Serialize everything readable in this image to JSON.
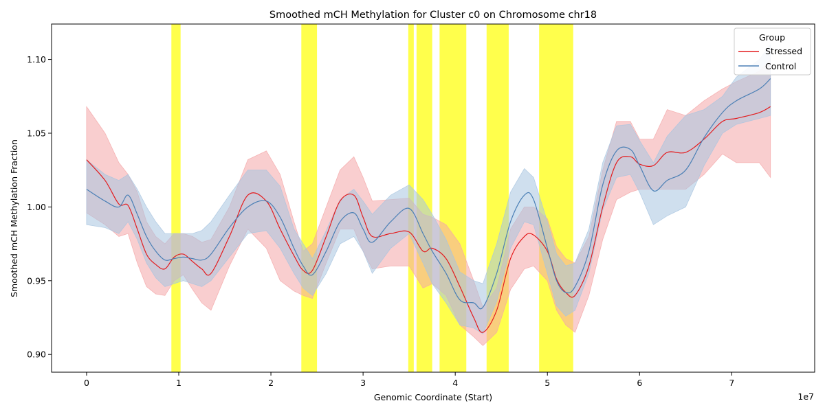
{
  "chart_data": {
    "type": "line",
    "title": "Smoothed mCH Methylation for Cluster c0 on Chromosome chr18",
    "xlabel": "Genomic Coordinate (Start)",
    "ylabel": "Smoothed mCH Methylation Fraction",
    "x_offset_label": "1e7",
    "xlim": [
      -0.38,
      7.9
    ],
    "ylim": [
      0.888,
      1.124
    ],
    "x_ticks": [
      0,
      1,
      2,
      3,
      4,
      5,
      6,
      7
    ],
    "x_tick_labels": [
      "0",
      "1",
      "2",
      "3",
      "4",
      "5",
      "6",
      "7"
    ],
    "y_ticks": [
      0.9,
      0.95,
      1.0,
      1.05,
      1.1
    ],
    "y_tick_labels": [
      "0.90",
      "0.95",
      "1.00",
      "1.05",
      "1.10"
    ],
    "legend": {
      "title": "Group",
      "position": "top-right"
    },
    "highlight_regions": [
      [
        0.92,
        1.02
      ],
      [
        2.33,
        2.5
      ],
      [
        3.49,
        3.55
      ],
      [
        3.58,
        3.75
      ],
      [
        3.83,
        4.12
      ],
      [
        4.34,
        4.58
      ],
      [
        4.91,
        5.28
      ]
    ],
    "highlight_color": "#ffff00",
    "series": [
      {
        "name": "Stressed",
        "color": "#e41a1c",
        "band_color": "#f4a6a7",
        "x": [
          0.0,
          0.2,
          0.35,
          0.45,
          0.55,
          0.65,
          0.75,
          0.85,
          0.95,
          1.05,
          1.15,
          1.25,
          1.35,
          1.55,
          1.75,
          1.95,
          2.1,
          2.25,
          2.35,
          2.45,
          2.6,
          2.75,
          2.9,
          3.0,
          3.1,
          3.3,
          3.5,
          3.65,
          3.75,
          3.9,
          4.05,
          4.2,
          4.3,
          4.45,
          4.6,
          4.75,
          4.85,
          5.0,
          5.1,
          5.2,
          5.3,
          5.45,
          5.6,
          5.75,
          5.9,
          6.0,
          6.15,
          6.3,
          6.5,
          6.7,
          6.9,
          7.05,
          7.3,
          7.42
        ],
        "y": [
          1.032,
          1.018,
          1.002,
          1.001,
          0.985,
          0.968,
          0.961,
          0.958,
          0.966,
          0.968,
          0.963,
          0.958,
          0.955,
          0.98,
          1.008,
          1.004,
          0.985,
          0.967,
          0.957,
          0.957,
          0.98,
          1.004,
          1.008,
          0.993,
          0.98,
          0.982,
          0.983,
          0.97,
          0.972,
          0.965,
          0.946,
          0.925,
          0.915,
          0.93,
          0.965,
          0.98,
          0.981,
          0.97,
          0.951,
          0.942,
          0.94,
          0.96,
          1.0,
          1.03,
          1.034,
          1.029,
          1.028,
          1.037,
          1.037,
          1.046,
          1.058,
          1.06,
          1.064,
          1.068
        ],
        "upper": [
          1.068,
          1.05,
          1.03,
          1.022,
          1.01,
          0.99,
          0.98,
          0.975,
          0.982,
          0.982,
          0.98,
          0.976,
          0.978,
          1.0,
          1.032,
          1.038,
          1.022,
          0.99,
          0.97,
          0.975,
          1.0,
          1.025,
          1.034,
          1.02,
          1.004,
          1.005,
          1.006,
          0.995,
          0.993,
          0.988,
          0.975,
          0.95,
          0.932,
          0.945,
          0.985,
          1.0,
          1.0,
          0.992,
          0.973,
          0.965,
          0.962,
          0.98,
          1.025,
          1.058,
          1.058,
          1.046,
          1.046,
          1.066,
          1.062,
          1.072,
          1.08,
          1.085,
          1.092,
          1.1
        ],
        "lower": [
          0.996,
          0.988,
          0.98,
          0.982,
          0.962,
          0.946,
          0.941,
          0.94,
          0.95,
          0.954,
          0.944,
          0.935,
          0.93,
          0.96,
          0.985,
          0.972,
          0.95,
          0.943,
          0.94,
          0.938,
          0.962,
          0.985,
          0.985,
          0.97,
          0.958,
          0.96,
          0.96,
          0.945,
          0.948,
          0.94,
          0.92,
          0.912,
          0.906,
          0.915,
          0.944,
          0.958,
          0.96,
          0.95,
          0.93,
          0.92,
          0.915,
          0.94,
          0.978,
          1.005,
          1.01,
          1.012,
          1.012,
          1.012,
          1.012,
          1.022,
          1.036,
          1.03,
          1.03,
          1.02
        ]
      },
      {
        "name": "Control",
        "color": "#4a7fb5",
        "band_color": "#a7c4e0",
        "x": [
          0.0,
          0.2,
          0.35,
          0.45,
          0.55,
          0.65,
          0.75,
          0.85,
          0.95,
          1.05,
          1.15,
          1.25,
          1.35,
          1.55,
          1.75,
          1.95,
          2.1,
          2.25,
          2.35,
          2.45,
          2.6,
          2.75,
          2.9,
          3.0,
          3.1,
          3.3,
          3.5,
          3.65,
          3.75,
          3.9,
          4.05,
          4.2,
          4.3,
          4.45,
          4.6,
          4.75,
          4.85,
          5.0,
          5.1,
          5.2,
          5.3,
          5.45,
          5.6,
          5.75,
          5.9,
          6.0,
          6.15,
          6.3,
          6.5,
          6.7,
          6.9,
          7.05,
          7.3,
          7.42
        ],
        "y": [
          1.012,
          1.004,
          1.0,
          1.008,
          0.995,
          0.98,
          0.97,
          0.964,
          0.965,
          0.966,
          0.965,
          0.964,
          0.968,
          0.986,
          1.0,
          1.004,
          0.993,
          0.972,
          0.96,
          0.954,
          0.97,
          0.99,
          0.996,
          0.985,
          0.976,
          0.99,
          0.999,
          0.982,
          0.97,
          0.955,
          0.937,
          0.935,
          0.932,
          0.955,
          0.99,
          1.008,
          1.005,
          0.972,
          0.95,
          0.942,
          0.946,
          0.97,
          1.015,
          1.038,
          1.039,
          1.028,
          1.011,
          1.018,
          1.025,
          1.047,
          1.064,
          1.072,
          1.08,
          1.087
        ],
        "upper": [
          1.032,
          1.022,
          1.018,
          1.022,
          1.012,
          1.0,
          0.99,
          0.982,
          0.982,
          0.982,
          0.982,
          0.984,
          0.99,
          1.008,
          1.025,
          1.025,
          1.014,
          0.985,
          0.975,
          0.965,
          0.984,
          1.005,
          1.012,
          1.004,
          0.995,
          1.008,
          1.015,
          1.005,
          0.995,
          0.978,
          0.956,
          0.95,
          0.948,
          0.975,
          1.01,
          1.026,
          1.02,
          0.99,
          0.968,
          0.96,
          0.962,
          0.985,
          1.03,
          1.055,
          1.056,
          1.045,
          1.03,
          1.048,
          1.062,
          1.066,
          1.075,
          1.088,
          1.1,
          1.11
        ],
        "lower": [
          0.988,
          0.986,
          0.982,
          0.99,
          0.978,
          0.962,
          0.952,
          0.946,
          0.948,
          0.95,
          0.948,
          0.946,
          0.95,
          0.966,
          0.982,
          0.984,
          0.972,
          0.955,
          0.945,
          0.94,
          0.955,
          0.975,
          0.98,
          0.97,
          0.955,
          0.972,
          0.982,
          0.962,
          0.948,
          0.935,
          0.92,
          0.918,
          0.914,
          0.936,
          0.972,
          0.99,
          0.988,
          0.955,
          0.933,
          0.926,
          0.93,
          0.955,
          0.998,
          1.02,
          1.022,
          1.01,
          0.988,
          0.994,
          1.0,
          1.028,
          1.05,
          1.056,
          1.06,
          1.062
        ]
      }
    ]
  }
}
